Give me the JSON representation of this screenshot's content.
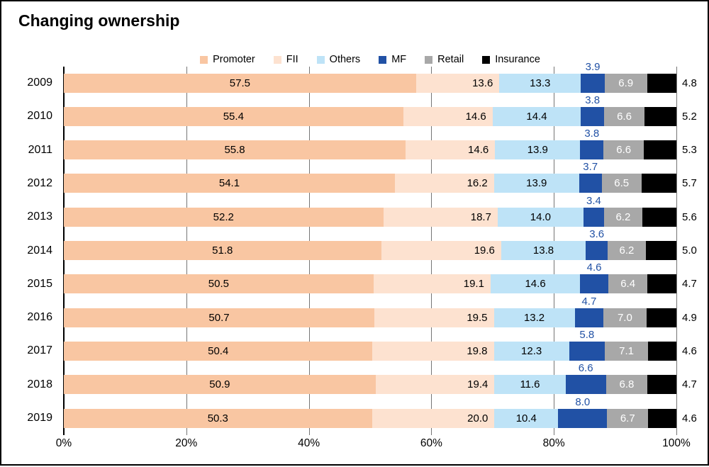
{
  "title": "Changing ownership",
  "legend": {
    "items": [
      {
        "label": "Promoter",
        "color": "#F9C6A2"
      },
      {
        "label": "FII",
        "color": "#FDE2D0"
      },
      {
        "label": "Others",
        "color": "#BEE3F7"
      },
      {
        "label": "MF",
        "color": "#2151A5"
      },
      {
        "label": "Retail",
        "color": "#A8A8A8"
      },
      {
        "label": "Insurance",
        "color": "#000000"
      }
    ]
  },
  "chart_data": {
    "type": "bar",
    "stacked": true,
    "orientation": "horizontal",
    "title": "Changing ownership",
    "categories": [
      "2009",
      "2010",
      "2011",
      "2012",
      "2013",
      "2014",
      "2015",
      "2016",
      "2017",
      "2018",
      "2019"
    ],
    "series": [
      {
        "name": "Promoter",
        "color": "#F9C6A2",
        "label_placement": "inside-center",
        "label_color": "#000000",
        "values": [
          57.5,
          55.4,
          55.8,
          54.1,
          52.2,
          51.8,
          50.5,
          50.7,
          50.4,
          50.9,
          50.3
        ]
      },
      {
        "name": "FII",
        "color": "#FDE2D0",
        "label_placement": "inside-end",
        "label_color": "#000000",
        "values": [
          13.6,
          14.6,
          14.6,
          16.2,
          18.7,
          19.6,
          19.1,
          19.5,
          19.8,
          19.4,
          20.0
        ]
      },
      {
        "name": "Others",
        "color": "#BEE3F7",
        "label_placement": "inside-center",
        "label_color": "#000000",
        "values": [
          13.3,
          14.4,
          13.9,
          13.9,
          14.0,
          13.8,
          14.6,
          13.2,
          12.3,
          11.6,
          10.4
        ]
      },
      {
        "name": "MF",
        "color": "#2151A5",
        "label_placement": "above",
        "label_color": "#2151A5",
        "values": [
          3.9,
          3.8,
          3.8,
          3.7,
          3.4,
          3.6,
          4.6,
          4.7,
          5.8,
          6.6,
          8.0
        ]
      },
      {
        "name": "Retail",
        "color": "#A8A8A8",
        "label_placement": "inside-center",
        "label_color": "#FFFFFF",
        "values": [
          6.9,
          6.6,
          6.6,
          6.5,
          6.2,
          6.2,
          6.4,
          7.0,
          7.1,
          6.8,
          6.7
        ]
      },
      {
        "name": "Insurance",
        "color": "#000000",
        "label_placement": "outside-end",
        "label_color": "#000000",
        "values": [
          4.8,
          5.2,
          5.3,
          5.7,
          5.6,
          5.0,
          4.7,
          4.9,
          4.6,
          4.7,
          4.6
        ]
      }
    ],
    "xlim": [
      0,
      100
    ],
    "xticks": [
      0,
      20,
      40,
      60,
      80,
      100
    ],
    "xtick_labels": [
      "0%",
      "20%",
      "40%",
      "60%",
      "80%",
      "100%"
    ],
    "grid": "vertical",
    "legend_position": "top",
    "value_format": "one-decimal"
  },
  "colors": {
    "gridline": "#757575",
    "axis_line": "#000000",
    "frame_border": "#000000",
    "background": "#FFFFFF"
  }
}
